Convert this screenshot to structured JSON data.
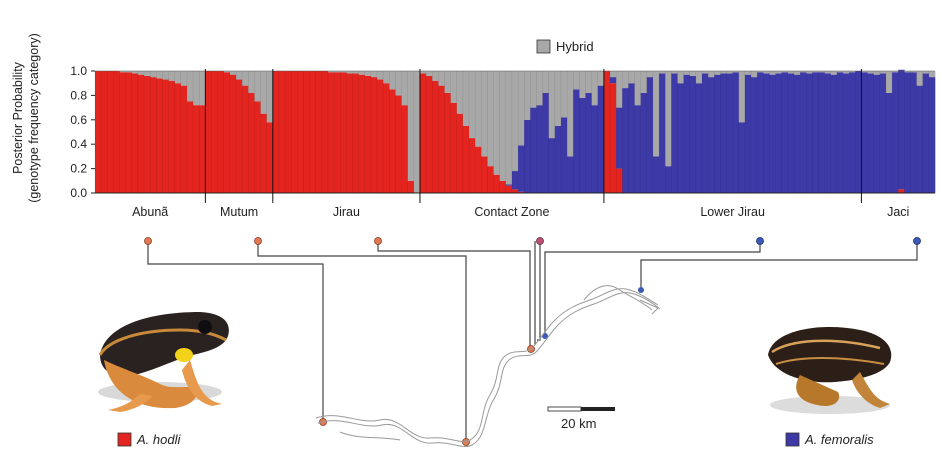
{
  "chart_data": {
    "type": "bar",
    "stacked": true,
    "ylabel_line1": "Posterior Probability",
    "ylabel_line2": "(genotype frequency category)",
    "ylim": [
      0,
      1
    ],
    "yticks": [
      "0.0",
      "0.2",
      "0.4",
      "0.6",
      "0.8",
      "1.0"
    ],
    "ytick_values": [
      0,
      0.2,
      0.4,
      0.6,
      0.8,
      1.0
    ],
    "hybrid_legend": "Hybrid",
    "series_colors": {
      "hodli": "#e3241f",
      "hybrid": "#a8a8a8",
      "femoralis": "#3d3aa8"
    },
    "populations": [
      {
        "name": "Abunã",
        "count": 18,
        "red": [
          1,
          1,
          1,
          1,
          0.99,
          0.99,
          0.98,
          0.97,
          0.96,
          0.95,
          0.94,
          0.93,
          0.92,
          0.9,
          0.88,
          0.75,
          0.72,
          0.72
        ]
      },
      {
        "name": "Mutum",
        "count": 11,
        "red": [
          1,
          1,
          1,
          0.99,
          0.97,
          0.93,
          0.88,
          0.82,
          0.75,
          0.65,
          0.58
        ]
      },
      {
        "name": "Jirau",
        "count": 24,
        "red": [
          1,
          1,
          1,
          1,
          1,
          1,
          1,
          1,
          1,
          0.99,
          0.99,
          0.99,
          0.98,
          0.98,
          0.97,
          0.96,
          0.95,
          0.93,
          0.9,
          0.85,
          0.8,
          0.72,
          0.1,
          0
        ]
      },
      {
        "name": "Contact Zone",
        "count": 30,
        "red": [
          0.98,
          0.96,
          0.92,
          0.88,
          0.82,
          0.74,
          0.65,
          0.55,
          0.45,
          0.38,
          0.3,
          0.22,
          0.15,
          0.1,
          0.06,
          0.03,
          0.01,
          0,
          0,
          0,
          0,
          0,
          0,
          0,
          0,
          0,
          0,
          0,
          0,
          0
        ],
        "blue": [
          0,
          0,
          0,
          0,
          0,
          0,
          0,
          0,
          0,
          0,
          0,
          0,
          0,
          0,
          0.01,
          0.15,
          0.38,
          0.6,
          0.7,
          0.72,
          0.82,
          0.45,
          0.55,
          0.62,
          0.3,
          0.85,
          0.78,
          0.82,
          0.72,
          0.88
        ]
      },
      {
        "name": "Lower Jirau",
        "count": 42,
        "red": [
          1,
          0.9,
          0.2,
          0,
          0,
          0,
          0,
          0,
          0,
          0,
          0,
          0,
          0,
          0,
          0,
          0,
          0,
          0,
          0,
          0,
          0,
          0,
          0,
          0,
          0,
          0,
          0,
          0,
          0,
          0,
          0,
          0,
          0,
          0,
          0,
          0,
          0,
          0,
          0,
          0,
          0,
          0
        ],
        "blue": [
          0,
          0.05,
          0.5,
          0.86,
          0.9,
          0.72,
          0.82,
          0.95,
          0.3,
          0.98,
          0.22,
          0.98,
          0.9,
          0.97,
          0.96,
          0.9,
          0.98,
          0.95,
          0.97,
          0.98,
          0.98,
          0.99,
          0.58,
          0.97,
          0.95,
          0.99,
          0.98,
          0.97,
          0.98,
          0.99,
          0.98,
          0.97,
          0.99,
          0.98,
          0.99,
          0.99,
          0.98,
          0.97,
          0.99,
          0.98,
          0.99,
          1
        ]
      },
      {
        "name": "Jaci",
        "count": 12,
        "red": [
          0,
          0,
          0,
          0,
          0,
          0,
          0.03,
          0,
          0,
          0,
          0,
          0
        ],
        "blue": [
          0.99,
          0.98,
          0.97,
          0.98,
          0.82,
          0.99,
          0.98,
          0.99,
          0.99,
          0.88,
          0.98,
          0.95
        ]
      }
    ]
  },
  "map": {
    "scale_label": "20 km"
  },
  "legend": {
    "hodli_label": "A. hodli",
    "femoralis_label": "A. femoralis"
  },
  "images": {
    "hodli_frog": "frog-hodli",
    "femoralis_frog": "frog-femoralis"
  }
}
